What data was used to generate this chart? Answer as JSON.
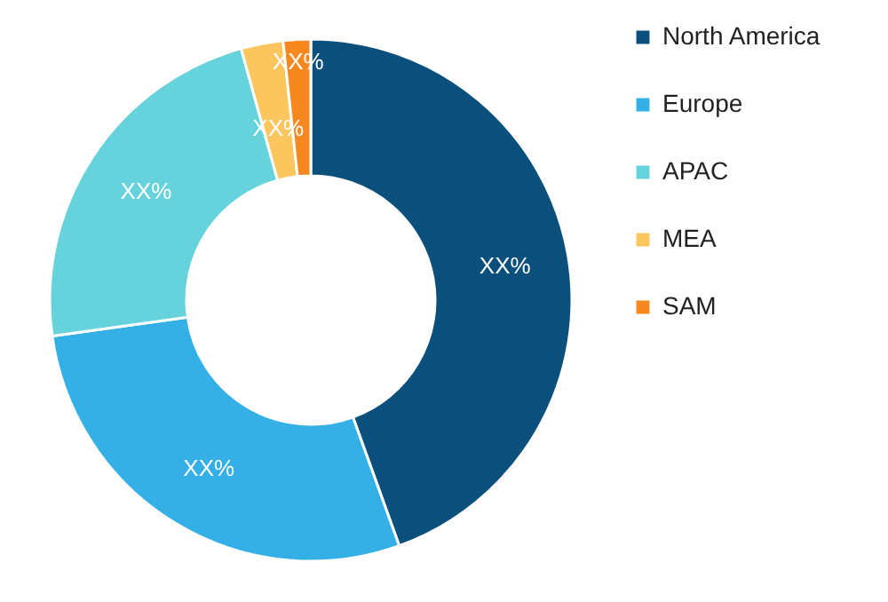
{
  "chart_data": {
    "type": "donut",
    "categories": [
      "North America",
      "Europe",
      "APAC",
      "MEA",
      "SAM"
    ],
    "values": [
      44.5,
      28.3,
      22.9,
      2.6,
      1.7
    ],
    "colors": [
      "#0b4f7c",
      "#35b0e6",
      "#66d2dc",
      "#fcc55e",
      "#f7881f"
    ],
    "value_labels": [
      "XX%",
      "XX%",
      "XX%",
      "XX%",
      "XX%"
    ],
    "legend": "right"
  }
}
